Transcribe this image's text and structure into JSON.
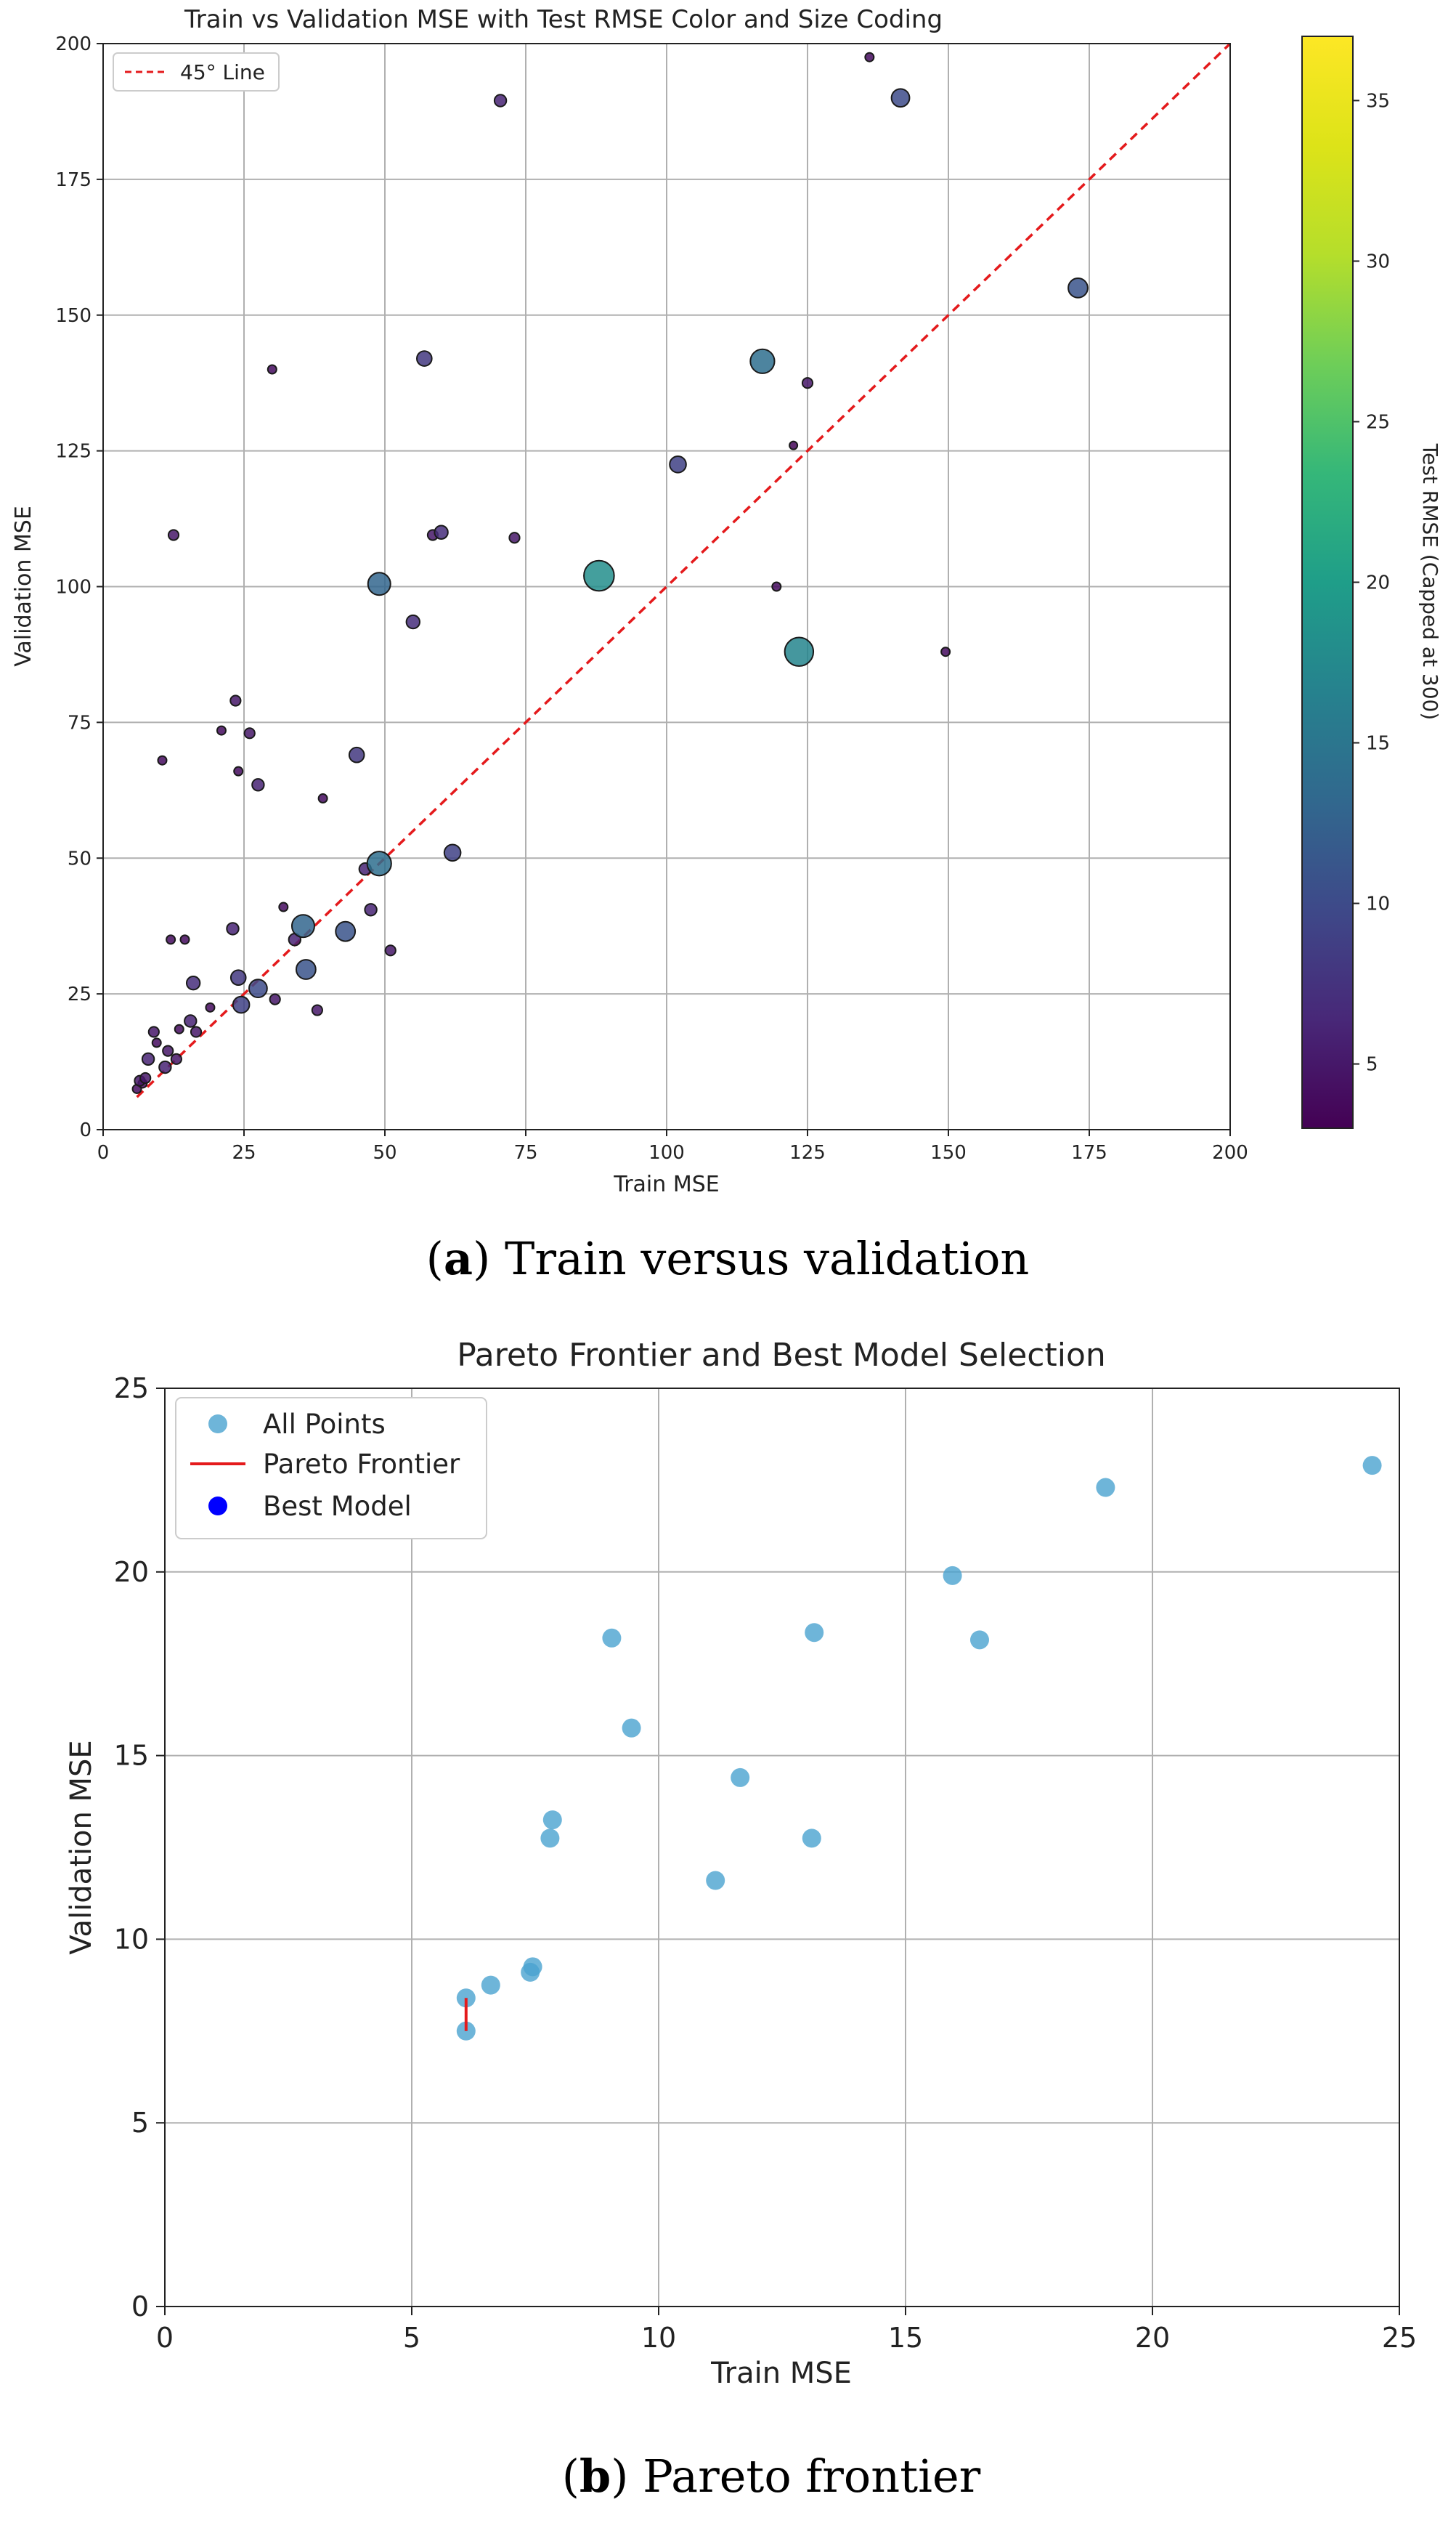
{
  "chart_data": [
    {
      "type": "scatter",
      "title": "Train vs Validation MSE with Test RMSE Color and Size Coding",
      "xlabel": "Train MSE",
      "ylabel": "Validation MSE",
      "xlim": [
        0,
        200
      ],
      "ylim": [
        0,
        200
      ],
      "xticks": [
        "0",
        "25",
        "50",
        "75",
        "100",
        "125",
        "150",
        "175",
        "200"
      ],
      "yticks": [
        "0",
        "25",
        "50",
        "75",
        "100",
        "125",
        "150",
        "175",
        "200"
      ],
      "grid": true,
      "legend": {
        "position": "top-left",
        "entries": [
          "45° Line"
        ]
      },
      "reference_line": {
        "name": "45° Line",
        "from": [
          6,
          6
        ],
        "to": [
          200,
          200
        ],
        "color": "#e41a1c"
      },
      "colorbar": {
        "label": "Test RMSE (Capped at 300)",
        "range": [
          3,
          37
        ],
        "ticks": [
          "5",
          "10",
          "15",
          "20",
          "25",
          "30",
          "35"
        ]
      },
      "points": [
        {
          "x": 6,
          "y": 7.5,
          "rmse": 4
        },
        {
          "x": 6.5,
          "y": 9,
          "rmse": 5
        },
        {
          "x": 7,
          "y": 8.5,
          "rmse": 4
        },
        {
          "x": 7.5,
          "y": 9.5,
          "rmse": 5
        },
        {
          "x": 8,
          "y": 13,
          "rmse": 6
        },
        {
          "x": 9,
          "y": 18,
          "rmse": 5
        },
        {
          "x": 9.5,
          "y": 16,
          "rmse": 4
        },
        {
          "x": 10.5,
          "y": 68,
          "rmse": 4
        },
        {
          "x": 11,
          "y": 11.5,
          "rmse": 6
        },
        {
          "x": 11.5,
          "y": 14.5,
          "rmse": 5
        },
        {
          "x": 12,
          "y": 35,
          "rmse": 4
        },
        {
          "x": 12.5,
          "y": 109.5,
          "rmse": 5
        },
        {
          "x": 13,
          "y": 13,
          "rmse": 5
        },
        {
          "x": 13.5,
          "y": 18.5,
          "rmse": 4
        },
        {
          "x": 14.5,
          "y": 35,
          "rmse": 4
        },
        {
          "x": 15.5,
          "y": 20,
          "rmse": 6
        },
        {
          "x": 16,
          "y": 27,
          "rmse": 7
        },
        {
          "x": 16.5,
          "y": 18,
          "rmse": 5
        },
        {
          "x": 19,
          "y": 22.5,
          "rmse": 4
        },
        {
          "x": 21,
          "y": 73.5,
          "rmse": 4
        },
        {
          "x": 23,
          "y": 37,
          "rmse": 6
        },
        {
          "x": 23.5,
          "y": 79,
          "rmse": 5
        },
        {
          "x": 24,
          "y": 66,
          "rmse": 4
        },
        {
          "x": 24,
          "y": 28,
          "rmse": 8
        },
        {
          "x": 24.5,
          "y": 23,
          "rmse": 9
        },
        {
          "x": 26,
          "y": 73,
          "rmse": 5
        },
        {
          "x": 27.5,
          "y": 26,
          "rmse": 10
        },
        {
          "x": 27.5,
          "y": 63.5,
          "rmse": 6
        },
        {
          "x": 30,
          "y": 140,
          "rmse": 4
        },
        {
          "x": 30.5,
          "y": 24,
          "rmse": 5
        },
        {
          "x": 32,
          "y": 41,
          "rmse": 4
        },
        {
          "x": 34,
          "y": 35,
          "rmse": 6
        },
        {
          "x": 35.5,
          "y": 37.5,
          "rmse": 13
        },
        {
          "x": 36,
          "y": 29.5,
          "rmse": 11
        },
        {
          "x": 38,
          "y": 22,
          "rmse": 5
        },
        {
          "x": 39,
          "y": 61,
          "rmse": 4
        },
        {
          "x": 43,
          "y": 36.5,
          "rmse": 11
        },
        {
          "x": 45,
          "y": 69,
          "rmse": 8
        },
        {
          "x": 46.5,
          "y": 48,
          "rmse": 6
        },
        {
          "x": 47.5,
          "y": 40.5,
          "rmse": 6
        },
        {
          "x": 49,
          "y": 49,
          "rmse": 14
        },
        {
          "x": 49,
          "y": 100.5,
          "rmse": 13
        },
        {
          "x": 51,
          "y": 33,
          "rmse": 5
        },
        {
          "x": 55,
          "y": 93.5,
          "rmse": 7
        },
        {
          "x": 57,
          "y": 142,
          "rmse": 8
        },
        {
          "x": 58.5,
          "y": 109.5,
          "rmse": 5
        },
        {
          "x": 60,
          "y": 110,
          "rmse": 7
        },
        {
          "x": 62,
          "y": 51,
          "rmse": 9
        },
        {
          "x": 70.5,
          "y": 189.5,
          "rmse": 6
        },
        {
          "x": 73,
          "y": 109,
          "rmse": 5
        },
        {
          "x": 88,
          "y": 102,
          "rmse": 18
        },
        {
          "x": 102,
          "y": 122.5,
          "rmse": 9
        },
        {
          "x": 117,
          "y": 141.5,
          "rmse": 14
        },
        {
          "x": 119.5,
          "y": 100,
          "rmse": 4
        },
        {
          "x": 122.5,
          "y": 126,
          "rmse": 3.5
        },
        {
          "x": 123.5,
          "y": 88,
          "rmse": 17
        },
        {
          "x": 125,
          "y": 137.5,
          "rmse": 5
        },
        {
          "x": 136,
          "y": 197.5,
          "rmse": 4
        },
        {
          "x": 141.5,
          "y": 190,
          "rmse": 10
        },
        {
          "x": 149.5,
          "y": 88,
          "rmse": 4
        },
        {
          "x": 173,
          "y": 155,
          "rmse": 11
        }
      ]
    },
    {
      "type": "scatter",
      "title": "Pareto Frontier and Best Model Selection",
      "xlabel": "Train MSE",
      "ylabel": "Validation MSE",
      "xlim": [
        0,
        25
      ],
      "ylim": [
        0,
        25
      ],
      "xticks": [
        "0",
        "5",
        "10",
        "15",
        "20",
        "25"
      ],
      "yticks": [
        "0",
        "5",
        "10",
        "15",
        "20",
        "25"
      ],
      "grid": true,
      "legend": {
        "position": "top-left",
        "entries": [
          "All Points",
          "Pareto Frontier",
          "Best Model"
        ]
      },
      "series": [
        {
          "name": "All Points",
          "color": "#4aa3d0",
          "points": [
            {
              "x": 6.1,
              "y": 8.4
            },
            {
              "x": 6.1,
              "y": 7.5
            },
            {
              "x": 6.6,
              "y": 8.75
            },
            {
              "x": 7.4,
              "y": 9.1
            },
            {
              "x": 7.45,
              "y": 9.25
            },
            {
              "x": 7.8,
              "y": 12.75
            },
            {
              "x": 7.85,
              "y": 13.25
            },
            {
              "x": 9.05,
              "y": 18.2
            },
            {
              "x": 9.45,
              "y": 15.75
            },
            {
              "x": 11.15,
              "y": 11.6
            },
            {
              "x": 11.65,
              "y": 14.4
            },
            {
              "x": 13.1,
              "y": 12.75
            },
            {
              "x": 13.15,
              "y": 18.35
            },
            {
              "x": 15.95,
              "y": 19.9
            },
            {
              "x": 16.5,
              "y": 18.15
            },
            {
              "x": 19.05,
              "y": 22.3
            },
            {
              "x": 24.45,
              "y": 22.9
            }
          ]
        },
        {
          "name": "Pareto Frontier",
          "color": "#e41a1c",
          "points": [
            {
              "x": 6.1,
              "y": 7.5
            },
            {
              "x": 6.1,
              "y": 8.4
            }
          ]
        },
        {
          "name": "Best Model",
          "color": "#0000ff",
          "points": []
        }
      ]
    }
  ],
  "captions": {
    "a": {
      "label": "a",
      "text": " Train versus validation"
    },
    "b": {
      "label": "b",
      "text": " Pareto frontier"
    }
  }
}
